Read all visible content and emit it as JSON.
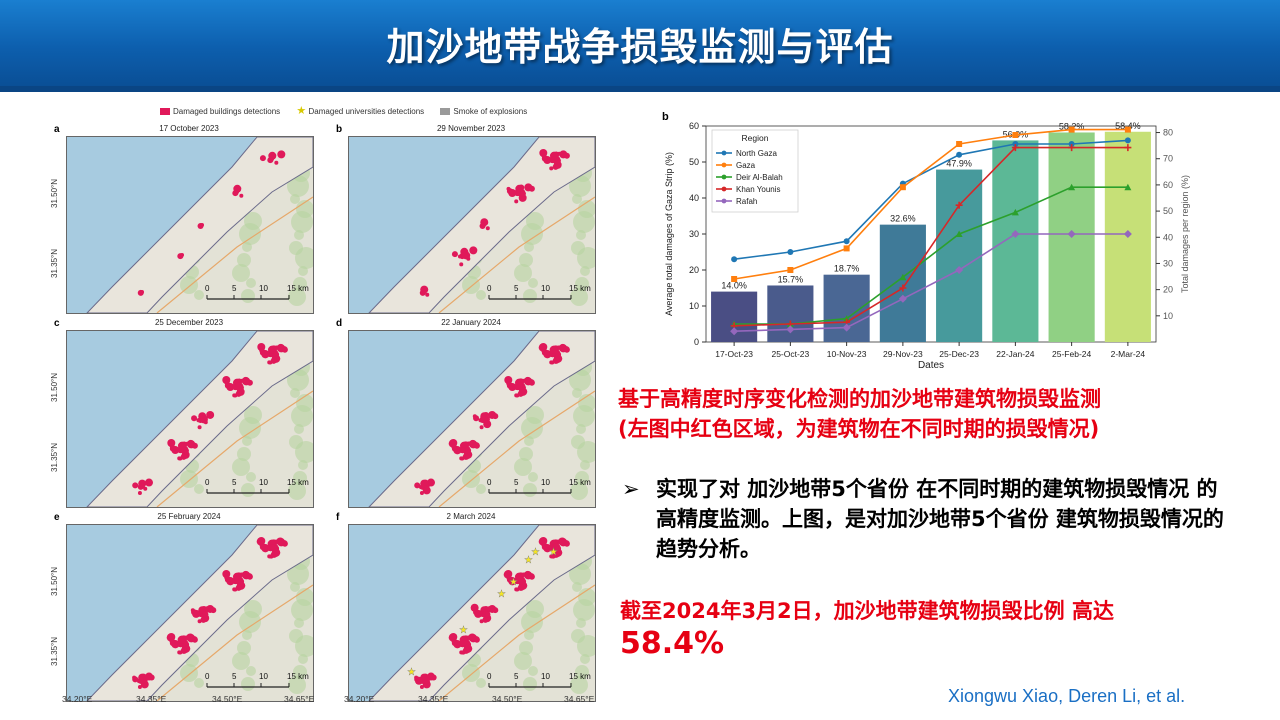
{
  "slide": {
    "title": "加沙地带战争损毁监测与评估",
    "credit": "Xiongwu Xiao, Deren Li, et al."
  },
  "maps": {
    "legend": {
      "buildings": "Damaged buildings detections",
      "universities": "Damaged universities detections",
      "smoke": "Smoke of explosions"
    },
    "panels": [
      {
        "letter": "a",
        "date": "17 October 2023"
      },
      {
        "letter": "b",
        "date": "29 November 2023"
      },
      {
        "letter": "c",
        "date": "25 December 2023"
      },
      {
        "letter": "d",
        "date": "22 January 2024"
      },
      {
        "letter": "e",
        "date": "25 February 2024"
      },
      {
        "letter": "f",
        "date": "2 March 2024"
      }
    ],
    "lat_labels": [
      "31.50°N",
      "31.35°N"
    ],
    "lon_labels": [
      "34.20°E",
      "34.35°E",
      "34.50°E",
      "34.65°E"
    ],
    "scale": [
      "0",
      "5",
      "10",
      "15 km"
    ],
    "place_labels": [
      "North Gaza",
      "Gaza",
      "Deir Al-Balah",
      "Khan Younis",
      "Rafah"
    ],
    "colors": {
      "sea": "#a7cbe0",
      "land": "#e3e2d6",
      "damage": "#e0195a",
      "star": "#f4e526"
    }
  },
  "chart_data": {
    "panel_letter": "b",
    "type": "bar+line",
    "categories": [
      "17-Oct-23",
      "25-Oct-23",
      "10-Nov-23",
      "29-Nov-23",
      "25-Dec-23",
      "22-Jan-24",
      "25-Feb-24",
      "2-Mar-24"
    ],
    "bars": {
      "values": [
        14.0,
        15.7,
        18.7,
        32.6,
        47.9,
        56.0,
        58.2,
        58.4
      ],
      "labels": [
        "14.0%",
        "15.7%",
        "18.7%",
        "32.6%",
        "47.9%",
        "56.0%",
        "58.2%",
        "58.4%"
      ],
      "colors": [
        "#4a4e84",
        "#4a5b8c",
        "#4a6794",
        "#3f7a98",
        "#479a9c",
        "#5cb896",
        "#90d084",
        "#c6e077"
      ]
    },
    "series": [
      {
        "name": "North Gaza",
        "color": "#1f77b4",
        "values": [
          23,
          25,
          28,
          44,
          52,
          55,
          55,
          56
        ]
      },
      {
        "name": "Gaza",
        "color": "#ff7f0e",
        "values": [
          17.5,
          20,
          26,
          43,
          55,
          57.5,
          59,
          59
        ]
      },
      {
        "name": "Deir Al-Balah",
        "color": "#2ca02c",
        "values": [
          5,
          5,
          6.5,
          18,
          30,
          36,
          43,
          43
        ]
      },
      {
        "name": "Khan Younis",
        "color": "#d62728",
        "values": [
          4.5,
          5,
          5.5,
          15,
          38,
          54,
          54,
          54
        ]
      },
      {
        "name": "Rafah",
        "color": "#9467bd",
        "values": [
          3,
          3.5,
          4,
          12,
          20,
          30,
          30,
          30
        ]
      }
    ],
    "legend_title": "Region",
    "xlabel": "Dates",
    "ylabel": "Average total damages of Gaza Strip (%)",
    "ylabel_right": "Total damages per region (%)",
    "ylim": [
      0,
      60
    ],
    "yticks": [
      0,
      10,
      20,
      30,
      40,
      50,
      60
    ],
    "yticks_right": [
      10,
      20,
      30,
      40,
      50,
      60,
      70,
      80
    ],
    "ylim_right": [
      0,
      82.5
    ]
  },
  "text": {
    "red_line1": "基于高精度时序变化检测的加沙地带建筑物损毁监测",
    "red_line2": "(左图中红色区域，为建筑物在不同时期的损毁情况)",
    "bullet_arrow": "➢",
    "bullet_text": "实现了对 加沙地带5个省份 在不同时期的建筑物损毁情况 的高精度监测。上图，是对加沙地带5个省份 建筑物损毁情况的趋势分析。",
    "conclusion": "截至2024年3月2日，加沙地带建筑物损毁比例 高达",
    "highlight": "58.4%"
  }
}
